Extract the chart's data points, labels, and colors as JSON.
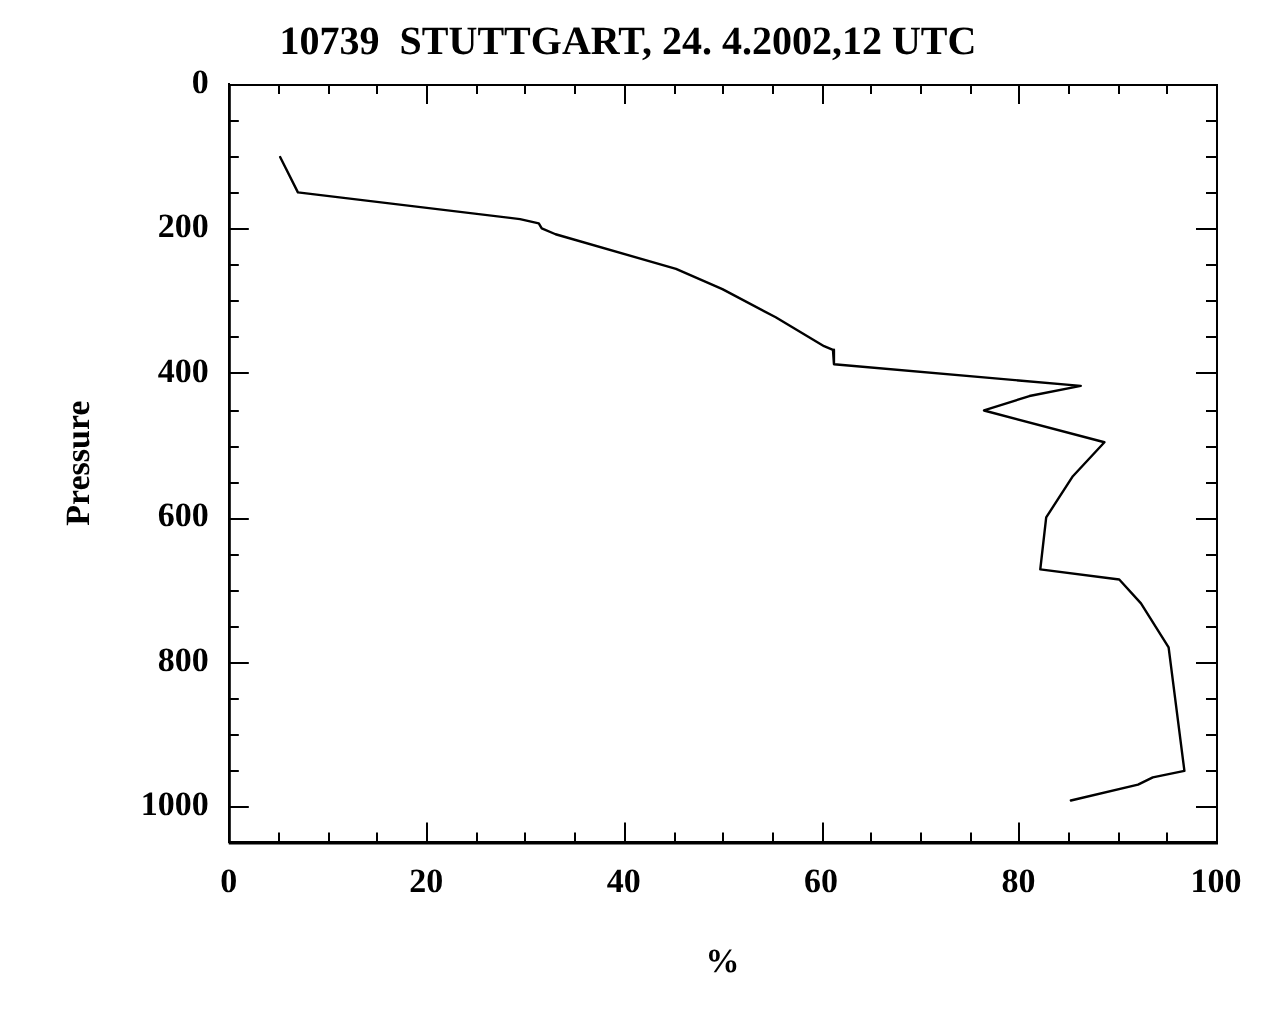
{
  "chart_data": {
    "type": "line",
    "title": "10739  STUTTGART, 24. 4.2002,12 UTC",
    "xlabel": "%",
    "ylabel": "Pressure",
    "xlim": [
      0,
      100
    ],
    "ylim": [
      1050,
      0
    ],
    "xticks": [
      0,
      {
        "value": 5,
        "label": null
      },
      {
        "value": 10,
        "label": null
      },
      {
        "value": 15,
        "label": null
      },
      20,
      {
        "value": 25,
        "label": null
      },
      {
        "value": 30,
        "label": null
      },
      {
        "value": 35,
        "label": null
      },
      40,
      {
        "value": 45,
        "label": null
      },
      {
        "value": 50,
        "label": null
      },
      {
        "value": 55,
        "label": null
      },
      60,
      {
        "value": 65,
        "label": null
      },
      {
        "value": 70,
        "label": null
      },
      {
        "value": 75,
        "label": null
      },
      80,
      {
        "value": 85,
        "label": null
      },
      {
        "value": 90,
        "label": null
      },
      {
        "value": 95,
        "label": null
      },
      100
    ],
    "yticks": [
      0,
      {
        "value": 50,
        "label": null
      },
      {
        "value": 100,
        "label": null
      },
      {
        "value": 150,
        "label": null
      },
      200,
      {
        "value": 250,
        "label": null
      },
      {
        "value": 300,
        "label": null
      },
      {
        "value": 350,
        "label": null
      },
      400,
      {
        "value": 450,
        "label": null
      },
      {
        "value": 500,
        "label": null
      },
      {
        "value": 550,
        "label": null
      },
      600,
      {
        "value": 650,
        "label": null
      },
      {
        "value": 700,
        "label": null
      },
      {
        "value": 750,
        "label": null
      },
      800,
      {
        "value": 850,
        "label": null
      },
      {
        "value": 900,
        "label": null
      },
      {
        "value": 950,
        "label": null
      },
      1000,
      {
        "value": 1050,
        "label": null
      }
    ],
    "grid": false,
    "legend": false,
    "marker": "none",
    "line_style": "solid",
    "series": [
      {
        "color": "#000000",
        "x": [
          5.2,
          7.0,
          29.5,
          31.4,
          31.7,
          33.1,
          45.3,
          50.0,
          55.4,
          60.3,
          61.2,
          61.3,
          86.3,
          81.1,
          76.5,
          88.7,
          85.5,
          82.8,
          82.2,
          90.2,
          92.4,
          95.2,
          96.8,
          93.6,
          92.1,
          85.3
        ],
        "values": [
          101,
          150,
          187,
          193,
          200,
          208,
          256,
          284,
          323,
          363,
          368,
          388,
          418,
          432,
          452,
          496,
          543,
          600,
          672,
          686,
          719,
          780,
          951,
          960,
          970,
          992
        ]
      }
    ]
  }
}
